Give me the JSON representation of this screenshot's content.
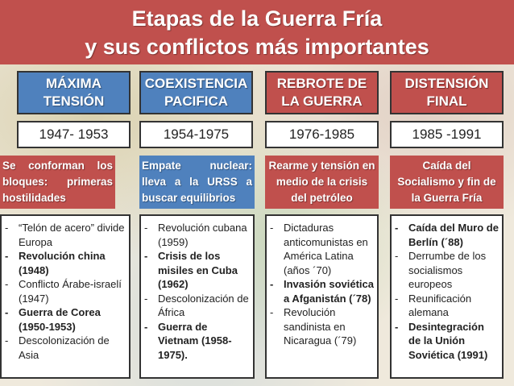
{
  "title": {
    "line1": "Etapas de la Guerra Fría",
    "line2": "y sus conflictos más importantes"
  },
  "colors": {
    "title": "#c0504d",
    "col1": "#4f81bd",
    "col2": "#4f81bd",
    "col3": "#c0504d",
    "col4": "#c0504d"
  },
  "columns": [
    {
      "header": [
        "MÁXIMA",
        "TENSIÓN"
      ],
      "period": "1947- 1953",
      "description": "Se conforman los bloques: primeras hostilidades",
      "items": [
        {
          "text": "“Telón de acero” divide Europa",
          "bold": false
        },
        {
          "text": "Revolución china (1948)",
          "bold": true
        },
        {
          "text": "Conflicto Árabe-israelí (1947)",
          "bold": false
        },
        {
          "text": "Guerra de Corea (1950-1953)",
          "bold": true
        },
        {
          "text": "Descolonización de Asia",
          "bold": false
        }
      ]
    },
    {
      "header": [
        "COEXISTENCIA",
        "PACIFICA"
      ],
      "period": "1954-1975",
      "description": "Empate nuclear: lleva a la URSS a buscar equilibrios",
      "items": [
        {
          "text": "Revolución cubana (1959)",
          "bold": false
        },
        {
          "text": "Crisis de los misiles en Cuba (1962)",
          "bold": true
        },
        {
          "text": "Descolonización de África",
          "bold": false
        },
        {
          "text": "Guerra de Vietnam (1958-1975).",
          "bold": true
        }
      ]
    },
    {
      "header": [
        "REBROTE DE",
        "LA GUERRA"
      ],
      "period": "1976-1985",
      "description": "Rearme y tensión en medio de la crisis del petróleo",
      "items": [
        {
          "text": "Dictaduras anticomunistas en América Latina (años ´70)",
          "bold": false
        },
        {
          "text": "Invasión soviética a Afganistán (´78)",
          "bold": true
        },
        {
          "text": "Revolución sandinista en Nicaragua (´79)",
          "bold": false
        }
      ]
    },
    {
      "header": [
        "DISTENSIÓN",
        "FINAL"
      ],
      "period": "1985 -1991",
      "description": "Caída del Socialismo y fin de la Guerra Fría",
      "items": [
        {
          "text": "Caída del Muro de Berlín (´88)",
          "bold": true
        },
        {
          "text": "Derrumbe de los socialismos europeos",
          "bold": false
        },
        {
          "text": "Reunificación alemana",
          "bold": false
        },
        {
          "text": "Desintegración de la Unión Soviética (1991)",
          "bold": true
        }
      ]
    }
  ]
}
